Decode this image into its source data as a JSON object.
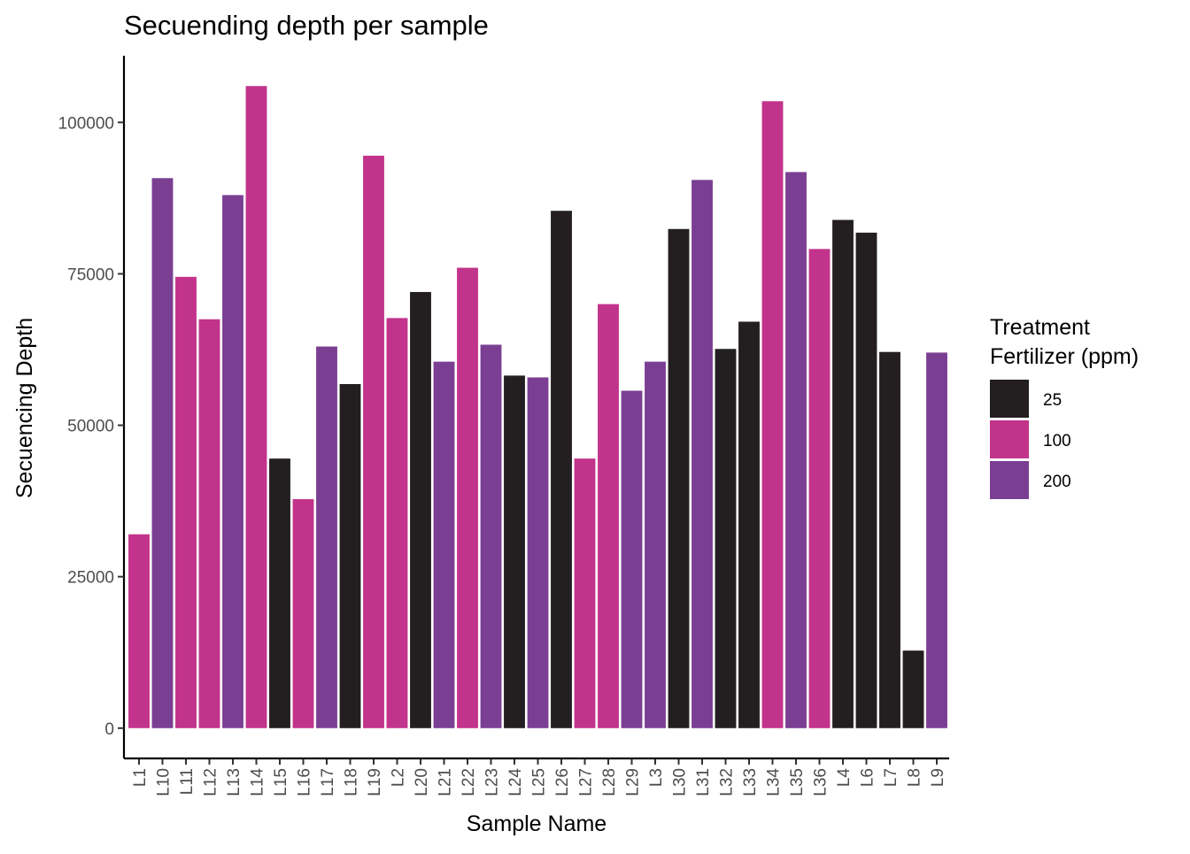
{
  "chart_data": {
    "type": "bar",
    "title": "Secuending depth per sample",
    "xlabel": "Sample Name",
    "ylabel": "Secuencing Depth",
    "ylim": [
      -5000,
      111000
    ],
    "yticks": [
      0,
      25000,
      50000,
      75000,
      100000
    ],
    "grid": false,
    "legend_position": "right",
    "legend": {
      "title_line1": "Treatment",
      "title_line2": "Fertilizer (ppm)",
      "entries": [
        {
          "label": "25",
          "color": "#231F20"
        },
        {
          "label": "100",
          "color": "#C2338B"
        },
        {
          "label": "200",
          "color": "#7A3F93"
        }
      ]
    },
    "categories": [
      "L1",
      "L10",
      "L11",
      "L12",
      "L13",
      "L14",
      "L15",
      "L16",
      "L17",
      "L18",
      "L19",
      "L2",
      "L20",
      "L21",
      "L22",
      "L23",
      "L24",
      "L25",
      "L26",
      "L27",
      "L28",
      "L29",
      "L3",
      "L30",
      "L31",
      "L32",
      "L33",
      "L34",
      "L35",
      "L36",
      "L4",
      "L6",
      "L7",
      "L8",
      "L9"
    ],
    "values": [
      32000,
      90800,
      74500,
      67500,
      88000,
      106000,
      44500,
      37800,
      63000,
      56800,
      94500,
      67700,
      72000,
      60500,
      76000,
      63300,
      58200,
      57900,
      85400,
      44500,
      70000,
      55700,
      60500,
      82400,
      90500,
      62600,
      67100,
      103500,
      91800,
      79100,
      83900,
      81800,
      62100,
      12800,
      62000
    ],
    "groups": [
      "100",
      "200",
      "100",
      "100",
      "200",
      "100",
      "25",
      "100",
      "200",
      "25",
      "100",
      "100",
      "25",
      "200",
      "100",
      "200",
      "25",
      "200",
      "25",
      "100",
      "100",
      "200",
      "200",
      "25",
      "200",
      "25",
      "25",
      "100",
      "200",
      "100",
      "25",
      "25",
      "25",
      "25",
      "200"
    ]
  }
}
